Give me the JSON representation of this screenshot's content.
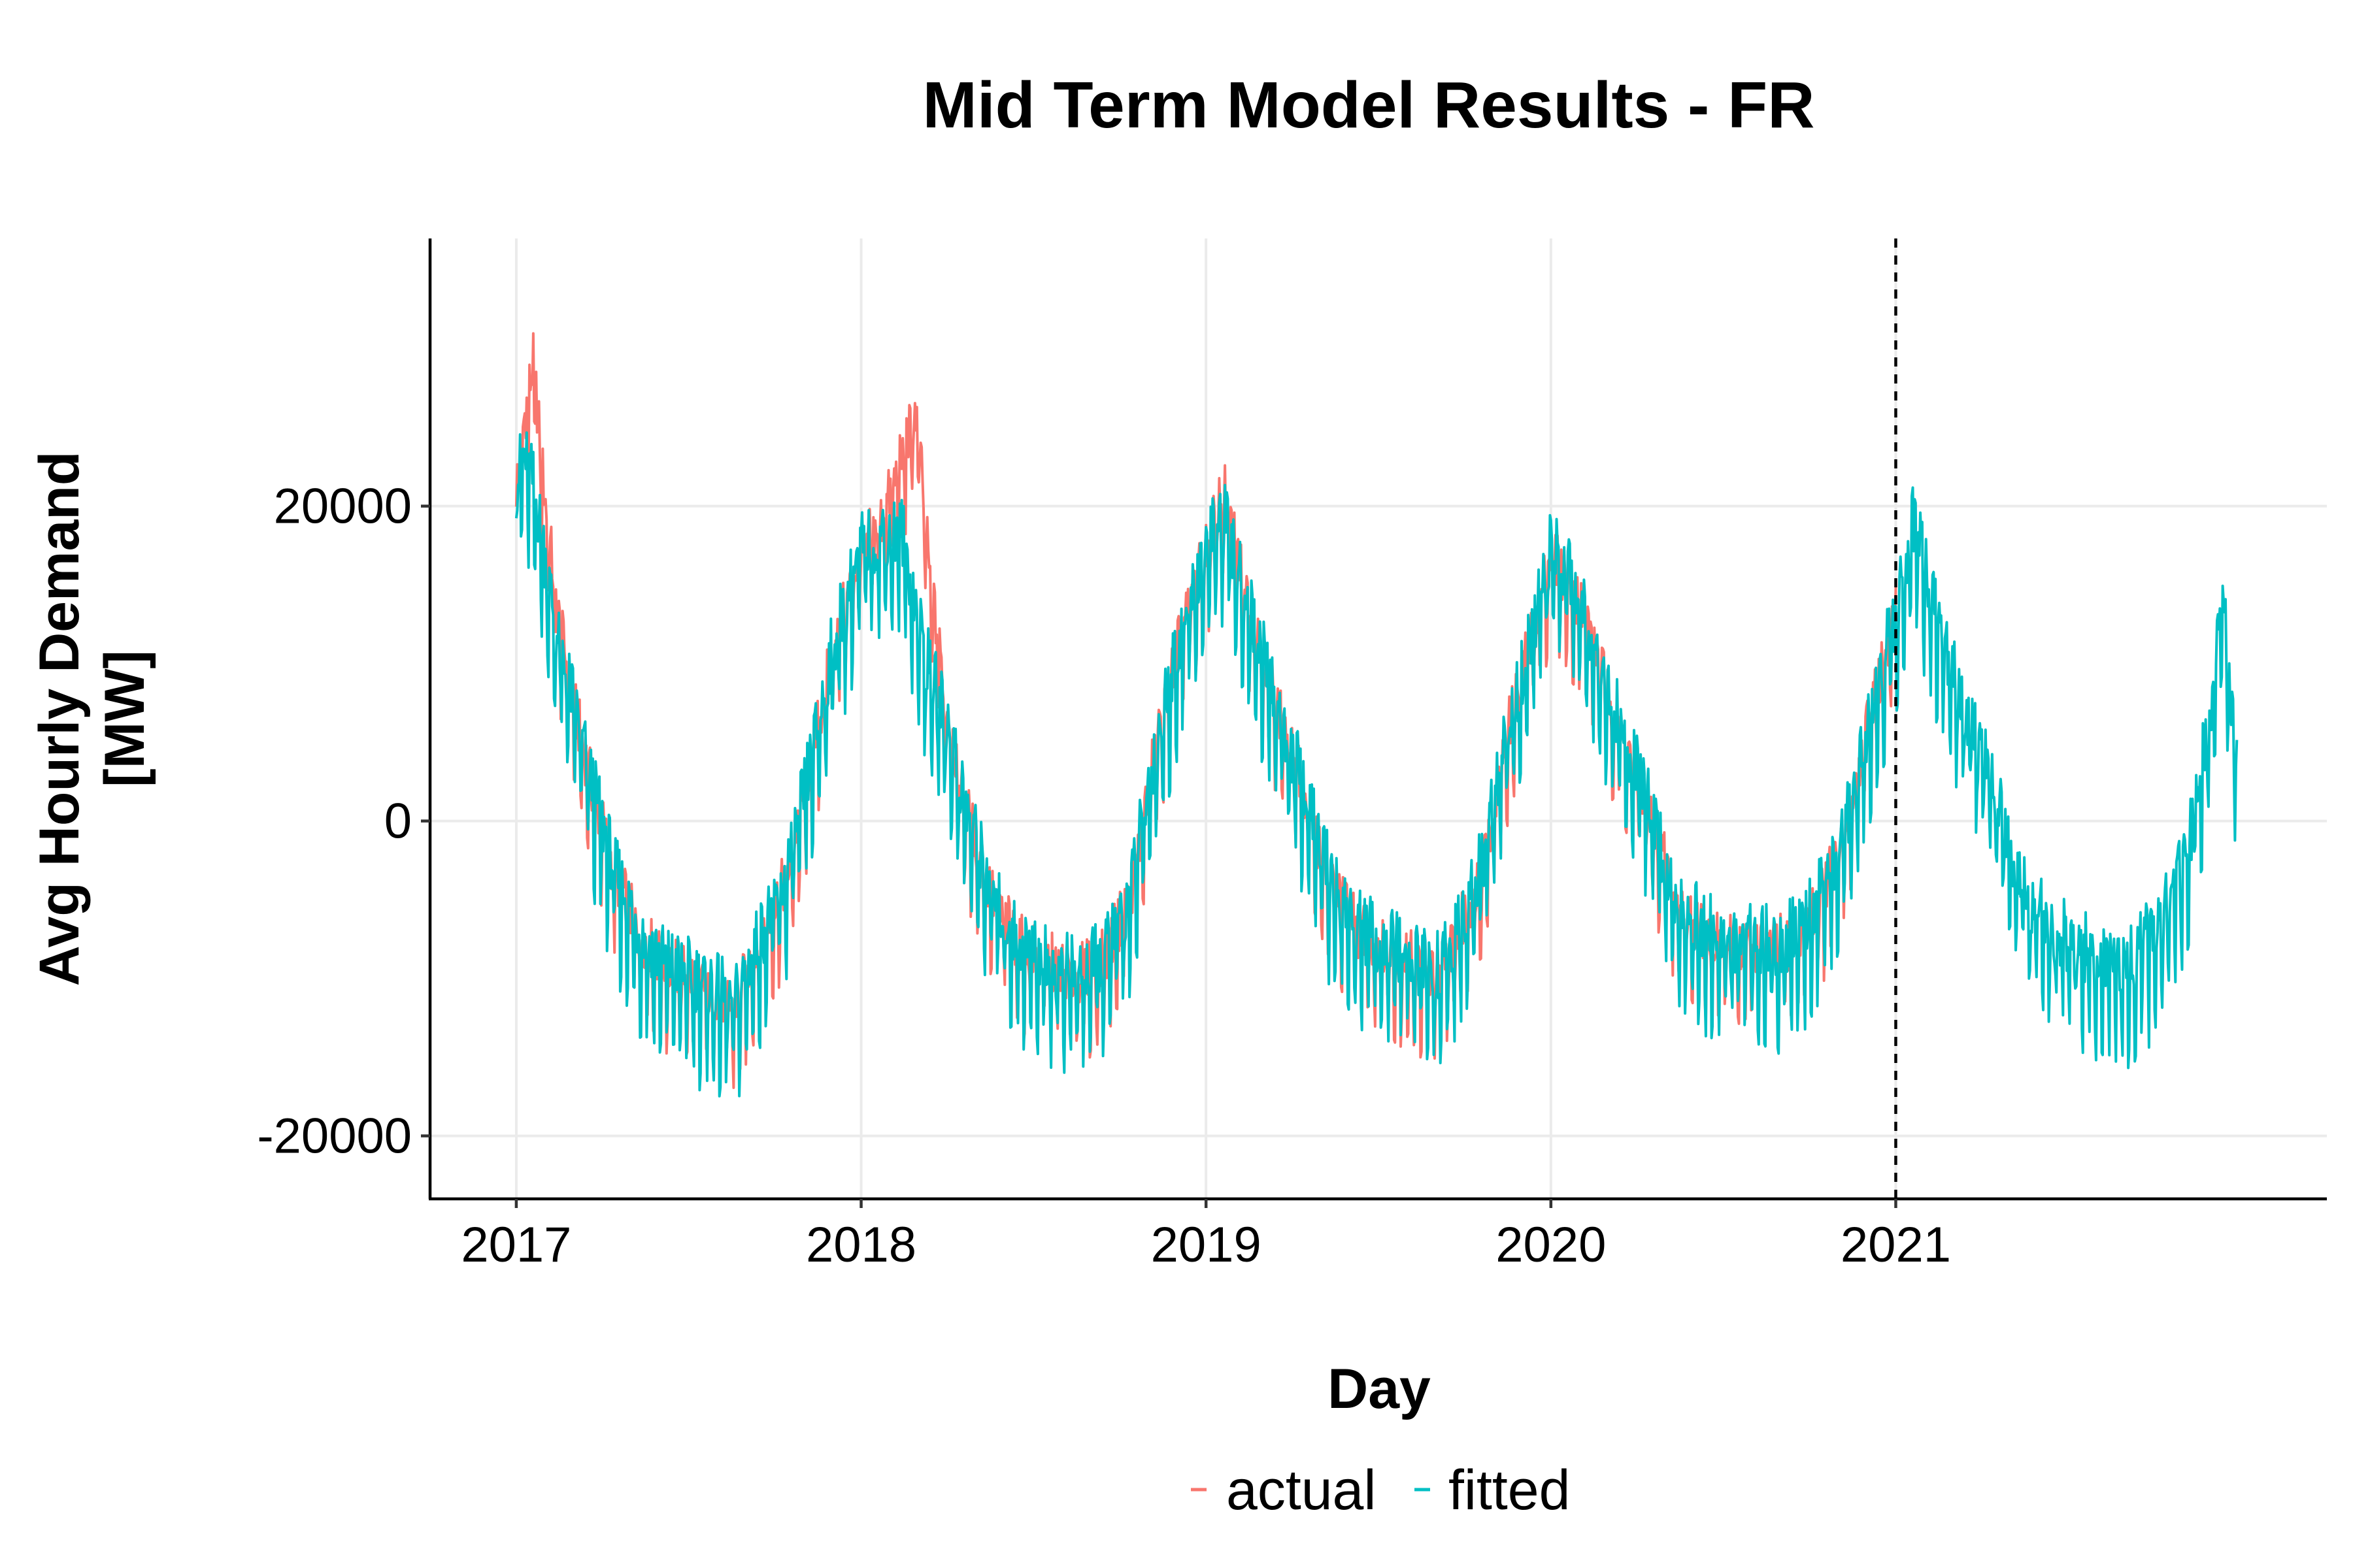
{
  "chart_data": {
    "type": "line",
    "title": "Mid Term Model Results - FR",
    "xlabel": "Day",
    "ylabel_line1": "Avg Hourly Demand",
    "ylabel_line2": "[MW]",
    "x_ticks": [
      "2017",
      "2018",
      "2019",
      "2020",
      "2021"
    ],
    "x_tick_values": [
      2017,
      2018,
      2019,
      2020,
      2021
    ],
    "xlim": [
      2016.75,
      2022.25
    ],
    "y_ticks": [
      20000,
      0,
      -20000
    ],
    "y_tick_labels": [
      "20000",
      "0",
      "-20000"
    ],
    "ylim": [
      -24000,
      37000
    ],
    "grid": true,
    "legend_position": "bottom",
    "vline_x": 2021.0,
    "vline_style": "dashed",
    "x_range": [
      2017.0,
      2021.99
    ],
    "series": [
      {
        "name": "actual",
        "color": "#f8766d",
        "ends_at": 2021.0,
        "anchors_x": [
          2017.0,
          2017.02,
          2017.05,
          2017.08,
          2017.12,
          2017.17,
          2017.22,
          2017.28,
          2017.35,
          2017.42,
          2017.5,
          2017.58,
          2017.63,
          2017.7,
          2017.78,
          2017.85,
          2017.92,
          2018.0,
          2018.06,
          2018.12,
          2018.16,
          2018.2,
          2018.25,
          2018.3,
          2018.38,
          2018.46,
          2018.54,
          2018.62,
          2018.7,
          2018.78,
          2018.85,
          2018.92,
          2019.0,
          2019.05,
          2019.1,
          2019.18,
          2019.28,
          2019.36,
          2019.44,
          2019.52,
          2019.6,
          2019.66,
          2019.72,
          2019.8,
          2019.88,
          2019.95,
          2020.0,
          2020.05,
          2020.1,
          2020.18,
          2020.28,
          2020.36,
          2020.44,
          2020.52,
          2020.6,
          2020.68,
          2020.76,
          2020.84,
          2020.92,
          2021.0
        ],
        "anchors_y": [
          20000,
          24000,
          28000,
          20000,
          12000,
          6000,
          1000,
          -4000,
          -8000,
          -10000,
          -11000,
          -12000,
          -13000,
          -9000,
          -5000,
          2000,
          10000,
          16000,
          18000,
          22000,
          25000,
          14000,
          6000,
          0,
          -6000,
          -9000,
          -10000,
          -11000,
          -10000,
          -6000,
          3000,
          10000,
          16000,
          20000,
          15000,
          8000,
          1000,
          -5000,
          -8000,
          -9000,
          -10000,
          -11000,
          -9000,
          -4000,
          5000,
          11000,
          16000,
          14000,
          12000,
          6000,
          0,
          -6000,
          -8000,
          -9000,
          -9000,
          -9000,
          -7000,
          -3000,
          5000,
          12000
        ],
        "amplitude": 3500
      },
      {
        "name": "fitted",
        "color": "#00bfc4",
        "ends_at": 2021.99,
        "anchors_x": [
          2017.0,
          2017.02,
          2017.05,
          2017.08,
          2017.12,
          2017.17,
          2017.22,
          2017.28,
          2017.35,
          2017.42,
          2017.5,
          2017.58,
          2017.63,
          2017.7,
          2017.78,
          2017.85,
          2017.92,
          2018.0,
          2018.06,
          2018.12,
          2018.16,
          2018.2,
          2018.25,
          2018.3,
          2018.38,
          2018.46,
          2018.54,
          2018.62,
          2018.7,
          2018.78,
          2018.85,
          2018.92,
          2019.0,
          2019.05,
          2019.1,
          2019.18,
          2019.28,
          2019.36,
          2019.44,
          2019.52,
          2019.6,
          2019.66,
          2019.72,
          2019.8,
          2019.88,
          2019.95,
          2020.0,
          2020.05,
          2020.1,
          2020.18,
          2020.28,
          2020.36,
          2020.44,
          2020.52,
          2020.6,
          2020.68,
          2020.76,
          2020.84,
          2020.92,
          2021.0,
          2021.05,
          2021.1,
          2021.18,
          2021.28,
          2021.36,
          2021.44,
          2021.52,
          2021.6,
          2021.68,
          2021.76,
          2021.84,
          2021.9,
          2021.95,
          2021.99
        ],
        "anchors_y": [
          20000,
          22000,
          20000,
          16000,
          10000,
          6000,
          1000,
          -4000,
          -8000,
          -10000,
          -11000,
          -12000,
          -13000,
          -9000,
          -5000,
          2000,
          10000,
          16000,
          17000,
          17000,
          12000,
          8000,
          5000,
          0,
          -6000,
          -9000,
          -10000,
          -11000,
          -10000,
          -6000,
          3000,
          10000,
          16000,
          18000,
          14000,
          8000,
          1000,
          -5000,
          -8000,
          -9000,
          -10000,
          -11000,
          -9000,
          -4000,
          5000,
          11000,
          16000,
          15000,
          12000,
          6000,
          0,
          -6000,
          -8000,
          -9000,
          -9000,
          -9000,
          -7000,
          -3000,
          5000,
          12000,
          18000,
          13000,
          7000,
          1000,
          -5000,
          -8000,
          -9000,
          -10000,
          -10000,
          -8000,
          -4000,
          4000,
          12000,
          3000
        ],
        "amplitude": 4200
      }
    ]
  }
}
